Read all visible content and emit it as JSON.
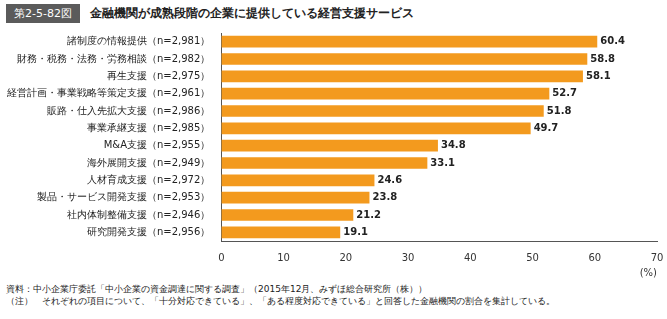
{
  "chart_data": {
    "type": "bar",
    "orientation": "horizontal",
    "title": "金融機関が成熟段階の企業に提供している経営支援サービス",
    "categories": [
      "諸制度の情報提供（n=2,981）",
      "財務・税務・法務・労務相談（n=2,982）",
      "再生支援（n=2,975）",
      "経営計画・事業戦略等策定支援（n=2,961）",
      "販路・仕入先拡大支援（n=2,986）",
      "事業承継支援（n=2,985）",
      "M&A支援（n=2,955）",
      "海外展開支援（n=2,949）",
      "人材育成支援（n=2,972）",
      "製品・サービス開発支援（n=2,953）",
      "社内体制整備支援（n=2,946）",
      "研究開発支援（n=2,956）"
    ],
    "values": [
      60.4,
      58.8,
      58.1,
      52.7,
      51.8,
      49.7,
      34.8,
      33.1,
      24.6,
      23.8,
      21.2,
      19.1
    ],
    "color": "#f39a1e",
    "xlim": [
      0,
      70
    ],
    "xticks": [
      0,
      10,
      20,
      30,
      40,
      50,
      60,
      70
    ],
    "x_label": "(%)",
    "grid": false,
    "data_labels": true,
    "annotations": [
      "第2-5-82図",
      "資料：中小企業庁委託「中小企業の資金調達に関する調査」（2015年12月、みずほ総合研究所（株））",
      "（注）　それぞれの項目について、「十分対応できている」、「ある程度対応できている」と回答した金融機関の割合を集計している。"
    ]
  }
}
